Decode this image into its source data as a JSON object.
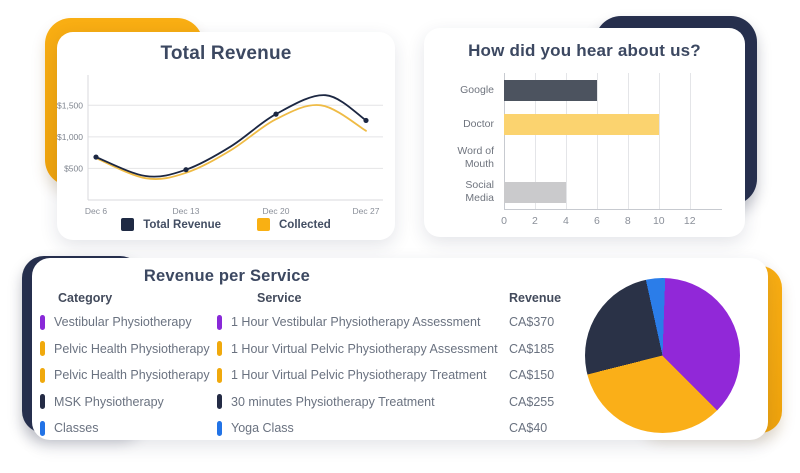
{
  "accent_colors": {
    "brand_yellow": "#F7AB10",
    "brand_navy": "#27304E"
  },
  "chart_data": [
    {
      "id": "total_revenue",
      "type": "line",
      "title": "Total Revenue",
      "x_labels": [
        "Dec 6",
        "Dec 13",
        "Dec 20",
        "Dec 27"
      ],
      "ylim": [
        0,
        1900
      ],
      "y_ticks": [
        {
          "label": "$500",
          "value": 500
        },
        {
          "label": "$1,000",
          "value": 1000
        },
        {
          "label": "$1,500",
          "value": 1500
        }
      ],
      "grid": "horizontal",
      "legend_position": "bottom",
      "series": [
        {
          "name": "Total Revenue",
          "color": "#1C2742",
          "legend_color": "#1F2A44",
          "values": [
            680,
            480,
            1360,
            1260
          ],
          "show_points": true,
          "curve": [
            {
              "t": 0,
              "v": 680
            },
            {
              "t": 0.55,
              "v": 380
            },
            {
              "t": 1,
              "v": 480
            },
            {
              "t": 1.5,
              "v": 850
            },
            {
              "t": 2,
              "v": 1360
            },
            {
              "t": 2.55,
              "v": 1660
            },
            {
              "t": 3,
              "v": 1260
            }
          ]
        },
        {
          "name": "Collected",
          "color": "#EFBB45",
          "legend_color": "#F9B013",
          "values": [
            665,
            430,
            1280,
            1095
          ],
          "show_points": false,
          "curve": [
            {
              "t": 0,
              "v": 665
            },
            {
              "t": 0.55,
              "v": 345
            },
            {
              "t": 1,
              "v": 430
            },
            {
              "t": 1.5,
              "v": 790
            },
            {
              "t": 2,
              "v": 1280
            },
            {
              "t": 2.5,
              "v": 1500
            },
            {
              "t": 3,
              "v": 1095
            }
          ]
        }
      ]
    },
    {
      "id": "referral_source",
      "type": "bar",
      "orientation": "horizontal",
      "title": "How did you hear about us?",
      "categories": [
        "Google",
        "Doctor",
        "Word of Mouth",
        "Social Media"
      ],
      "values": [
        6,
        10,
        0,
        4
      ],
      "bar_colors": [
        "#4C535F",
        "#FBD36F",
        "#FBD36F",
        "#CACACC"
      ],
      "x_ticks": [
        0,
        2,
        4,
        6,
        8,
        10,
        12
      ],
      "xlim": [
        0,
        13.5
      ],
      "grid": "vertical"
    },
    {
      "id": "revenue_per_service",
      "type": "table",
      "title": "Revenue per Service",
      "headers": {
        "category": "Category",
        "service": "Service",
        "revenue": "Revenue"
      },
      "rows": [
        {
          "category": "Vestibular Physiotherapy",
          "service": "1 Hour Vestibular Physiotherapy Assessment",
          "revenue": "CA$370",
          "color": "#8929D8"
        },
        {
          "category": "Pelvic Health Physiotherapy",
          "service": "1 Hour Virtual Pelvic Physiotherapy Assessment",
          "revenue": "CA$185",
          "color": "#F0A90D"
        },
        {
          "category": "Pelvic Health Physiotherapy",
          "service": "1 Hour Virtual Pelvic Physiotherapy Treatment",
          "revenue": "CA$150",
          "color": "#F0A90D"
        },
        {
          "category": "MSK Physiotherapy",
          "service": "30 minutes Physiotherapy Treatment",
          "revenue": "CA$255",
          "color": "#242B45"
        },
        {
          "category": "Classes",
          "service": "Yoga Class",
          "revenue": "CA$40",
          "color": "#2273E6"
        }
      ]
    },
    {
      "id": "revenue_share",
      "type": "pie",
      "start_angle_deg": 2,
      "slices": [
        {
          "label": "Vestibular Physiotherapy",
          "value": 370,
          "color": "#9128D8"
        },
        {
          "label": "Pelvic Health Physiotherapy",
          "value": 335,
          "color": "#FAAF18"
        },
        {
          "label": "MSK Physiotherapy",
          "value": 255,
          "color": "#2A3247"
        },
        {
          "label": "Classes",
          "value": 40,
          "color": "#2B7DE9"
        }
      ]
    }
  ]
}
